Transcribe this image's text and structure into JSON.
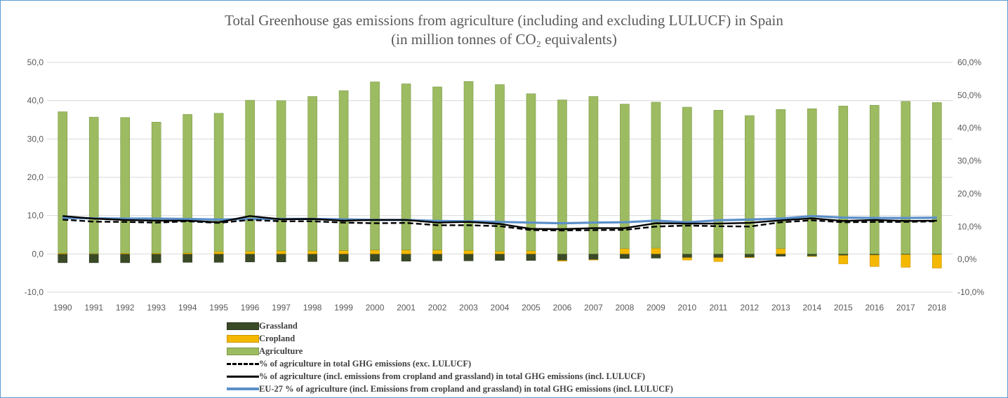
{
  "chart_data": {
    "type": "bar",
    "title": "Total Greenhouse gas emissions from agriculture (including and excluding LULUCF) in Spain",
    "subtitle": "(in million tonnes of CO₂ equivalents)",
    "categories": [
      "1990",
      "1991",
      "1992",
      "1993",
      "1994",
      "1995",
      "1996",
      "1997",
      "1998",
      "1999",
      "2000",
      "2001",
      "2002",
      "2003",
      "2004",
      "2005",
      "2006",
      "2007",
      "2008",
      "2009",
      "2010",
      "2011",
      "2012",
      "2013",
      "2014",
      "2015",
      "2016",
      "2017",
      "2018"
    ],
    "ylim": [
      -10,
      50
    ],
    "y2lim": [
      -10,
      60
    ],
    "yticks": [
      "-10,0",
      "0,0",
      "10,0",
      "20,0",
      "30,0",
      "40,0",
      "50,0"
    ],
    "y2ticks": [
      "-10,0%",
      "0,0%",
      "10,0%",
      "20,0%",
      "30,0%",
      "40,0%",
      "50,0%",
      "60,0%"
    ],
    "grid": true,
    "legend_position": "bottom",
    "stacked_series": [
      {
        "name": "Grassland",
        "color": "#3a4a27",
        "values": [
          -2.3,
          -2.3,
          -2.3,
          -2.3,
          -2.2,
          -2.2,
          -2.1,
          -2.1,
          -2.0,
          -2.0,
          -1.9,
          -1.9,
          -1.8,
          -1.8,
          -1.7,
          -1.7,
          -1.7,
          -1.5,
          -1.2,
          -1.1,
          -1.0,
          -1.0,
          -0.9,
          -0.6,
          -0.6,
          -0.4,
          -0.3,
          -0.2,
          -0.2
        ]
      },
      {
        "name": "Cropland",
        "color": "#f5b800",
        "values": [
          0.2,
          0.1,
          0.2,
          0.2,
          0.3,
          0.6,
          0.7,
          0.8,
          0.8,
          0.9,
          1.0,
          1.0,
          1.0,
          0.9,
          0.7,
          0.8,
          -0.2,
          -0.1,
          1.4,
          1.5,
          -0.6,
          -1.0,
          -0.1,
          1.4,
          -0.1,
          -2.2,
          -3.0,
          -3.3,
          -3.5
        ]
      },
      {
        "name": "Agriculture",
        "color": "#9dbb61",
        "values": [
          36.9,
          35.6,
          35.4,
          34.2,
          36.1,
          36.1,
          39.4,
          39.2,
          40.3,
          41.7,
          43.9,
          43.4,
          42.6,
          44.1,
          43.5,
          41.0,
          40.2,
          41.1,
          37.7,
          38.1,
          38.3,
          37.5,
          36.1,
          36.3,
          37.9,
          38.6,
          38.8,
          39.8,
          39.5
        ]
      }
    ],
    "line_series": [
      {
        "name": "% of agriculture in total GHG emissions (exc. LULUCF)",
        "style": "dashed",
        "color": "#000000",
        "values": [
          12.1,
          11.5,
          11.4,
          11.2,
          11.6,
          11.1,
          12.0,
          11.6,
          11.6,
          11.2,
          11.0,
          11.1,
          10.4,
          10.4,
          10.1,
          8.9,
          8.8,
          8.9,
          9.0,
          10.0,
          10.3,
          10.1,
          10.0,
          11.3,
          11.9,
          11.3,
          11.4,
          11.4,
          11.6
        ]
      },
      {
        "name": "% of agriculture (incl. emissions from cropland and grassland) in total GHG emissions (incl. LULUCF)",
        "style": "solid",
        "color": "#000000",
        "values": [
          13.2,
          12.4,
          12.0,
          11.8,
          11.8,
          11.3,
          13.2,
          12.2,
          12.3,
          11.8,
          12.0,
          12.0,
          11.2,
          11.4,
          10.8,
          9.3,
          9.2,
          9.5,
          9.5,
          11.0,
          10.9,
          10.9,
          11.1,
          11.9,
          12.5,
          11.7,
          12.0,
          11.7,
          11.8
        ]
      },
      {
        "name": "EU-27 % of agriculture (incl. Emissions from cropland and grassland) in total GHG emissions (incl. LULUCF)",
        "style": "solid",
        "color": "#5b8fc9",
        "values": [
          12.6,
          12.5,
          12.4,
          12.4,
          12.3,
          12.1,
          12.3,
          12.3,
          12.3,
          12.2,
          12.0,
          12.0,
          11.7,
          11.6,
          11.4,
          11.2,
          11.0,
          11.2,
          11.3,
          11.8,
          11.3,
          11.9,
          12.1,
          12.4,
          13.2,
          12.7,
          12.6,
          12.6,
          12.7
        ]
      }
    ]
  }
}
